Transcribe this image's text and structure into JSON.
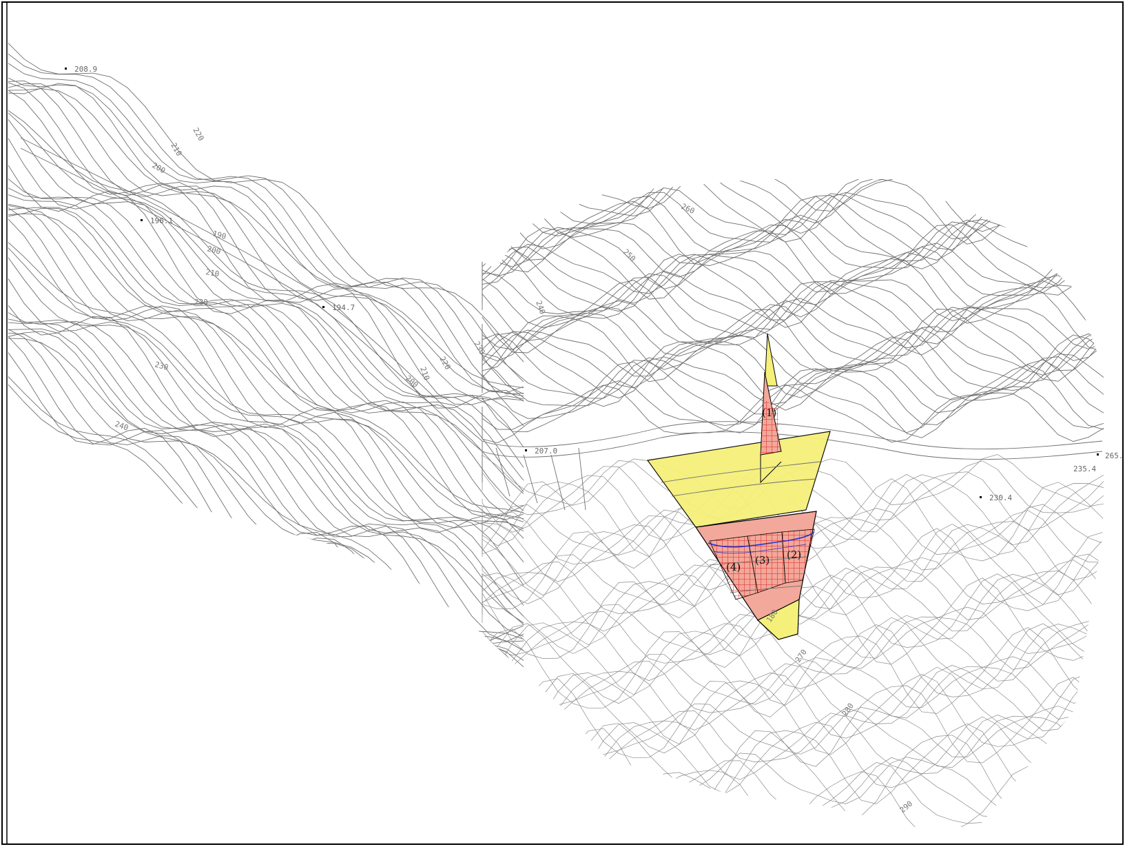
{
  "map": {
    "colors": {
      "background": "#ffffff",
      "frame": "#000000",
      "contour": "#6e6e6e",
      "yellow_zone": "#f5f07a",
      "red_zone": "#f2a89a",
      "hatch": "#e02020",
      "blue_line": "#2233cc"
    },
    "elevation_points": [
      {
        "label": "208.9"
      },
      {
        "label": "196.1"
      },
      {
        "label": "194.7"
      },
      {
        "label": "207.0"
      },
      {
        "label": "230.4"
      },
      {
        "label": "235.4"
      },
      {
        "label": "265."
      }
    ],
    "contour_labels": [
      "220",
      "210",
      "200",
      "190",
      "200",
      "210",
      "220",
      "230",
      "240",
      "260",
      "250",
      "240",
      "230",
      "220",
      "210",
      "200",
      "180",
      "270",
      "280",
      "290"
    ],
    "zones": [
      {
        "label": "(1)"
      },
      {
        "label": "(2)"
      },
      {
        "label": "(3)"
      },
      {
        "label": "(4)"
      }
    ]
  }
}
